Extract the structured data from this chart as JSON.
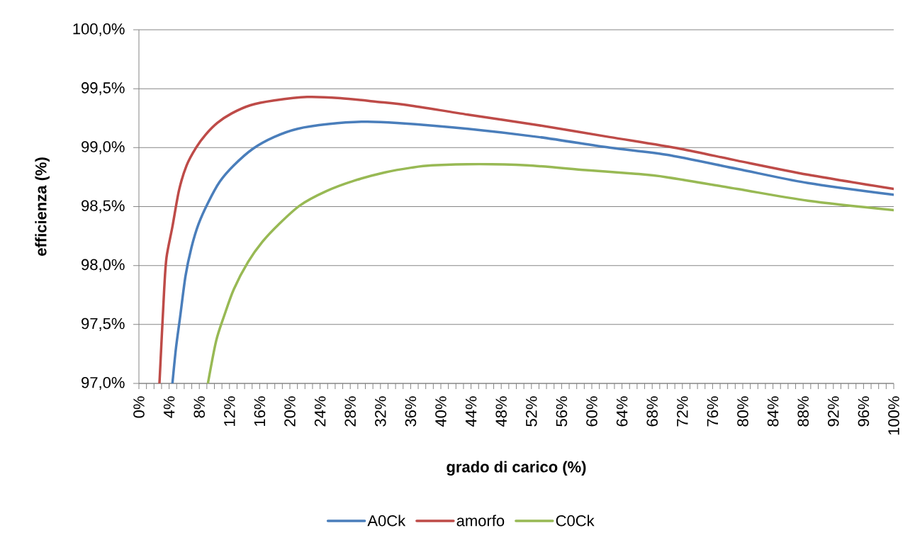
{
  "chart_data": {
    "type": "line",
    "xlabel": "grado di carico (%)",
    "ylabel": "efficienza (%)",
    "xlim": [
      0,
      100
    ],
    "ylim": [
      97,
      100
    ],
    "xticks": [
      {
        "value": 0,
        "label": "0%"
      },
      {
        "value": 1,
        "label": null
      },
      {
        "value": 2,
        "label": null
      },
      {
        "value": 3,
        "label": null
      },
      {
        "value": 4,
        "label": "4%"
      },
      {
        "value": 5,
        "label": null
      },
      {
        "value": 6,
        "label": null
      },
      {
        "value": 7,
        "label": null
      },
      {
        "value": 8,
        "label": "8%"
      },
      {
        "value": 9,
        "label": null
      },
      {
        "value": 10,
        "label": null
      },
      {
        "value": 11,
        "label": null
      },
      {
        "value": 12,
        "label": "12%"
      },
      {
        "value": 13,
        "label": null
      },
      {
        "value": 14,
        "label": null
      },
      {
        "value": 15,
        "label": null
      },
      {
        "value": 16,
        "label": "16%"
      },
      {
        "value": 17,
        "label": null
      },
      {
        "value": 18,
        "label": null
      },
      {
        "value": 19,
        "label": null
      },
      {
        "value": 20,
        "label": "20%"
      },
      {
        "value": 21,
        "label": null
      },
      {
        "value": 22,
        "label": null
      },
      {
        "value": 23,
        "label": null
      },
      {
        "value": 24,
        "label": "24%"
      },
      {
        "value": 25,
        "label": null
      },
      {
        "value": 26,
        "label": null
      },
      {
        "value": 27,
        "label": null
      },
      {
        "value": 28,
        "label": "28%"
      },
      {
        "value": 29,
        "label": null
      },
      {
        "value": 30,
        "label": null
      },
      {
        "value": 31,
        "label": null
      },
      {
        "value": 32,
        "label": "32%"
      },
      {
        "value": 33,
        "label": null
      },
      {
        "value": 34,
        "label": null
      },
      {
        "value": 35,
        "label": null
      },
      {
        "value": 36,
        "label": "36%"
      },
      {
        "value": 37,
        "label": null
      },
      {
        "value": 38,
        "label": null
      },
      {
        "value": 39,
        "label": null
      },
      {
        "value": 40,
        "label": "40%"
      },
      {
        "value": 41,
        "label": null
      },
      {
        "value": 42,
        "label": null
      },
      {
        "value": 43,
        "label": null
      },
      {
        "value": 44,
        "label": "44%"
      },
      {
        "value": 45,
        "label": null
      },
      {
        "value": 46,
        "label": null
      },
      {
        "value": 47,
        "label": null
      },
      {
        "value": 48,
        "label": "48%"
      },
      {
        "value": 49,
        "label": null
      },
      {
        "value": 50,
        "label": null
      },
      {
        "value": 51,
        "label": null
      },
      {
        "value": 52,
        "label": "52%"
      },
      {
        "value": 53,
        "label": null
      },
      {
        "value": 54,
        "label": null
      },
      {
        "value": 55,
        "label": null
      },
      {
        "value": 56,
        "label": "56%"
      },
      {
        "value": 57,
        "label": null
      },
      {
        "value": 58,
        "label": null
      },
      {
        "value": 59,
        "label": null
      },
      {
        "value": 60,
        "label": "60%"
      },
      {
        "value": 61,
        "label": null
      },
      {
        "value": 62,
        "label": null
      },
      {
        "value": 63,
        "label": null
      },
      {
        "value": 64,
        "label": "64%"
      },
      {
        "value": 65,
        "label": null
      },
      {
        "value": 66,
        "label": null
      },
      {
        "value": 67,
        "label": null
      },
      {
        "value": 68,
        "label": "68%"
      },
      {
        "value": 69,
        "label": null
      },
      {
        "value": 70,
        "label": null
      },
      {
        "value": 71,
        "label": null
      },
      {
        "value": 72,
        "label": "72%"
      },
      {
        "value": 73,
        "label": null
      },
      {
        "value": 74,
        "label": null
      },
      {
        "value": 75,
        "label": null
      },
      {
        "value": 76,
        "label": "76%"
      },
      {
        "value": 77,
        "label": null
      },
      {
        "value": 78,
        "label": null
      },
      {
        "value": 79,
        "label": null
      },
      {
        "value": 80,
        "label": "80%"
      },
      {
        "value": 81,
        "label": null
      },
      {
        "value": 82,
        "label": null
      },
      {
        "value": 83,
        "label": null
      },
      {
        "value": 84,
        "label": "84%"
      },
      {
        "value": 85,
        "label": null
      },
      {
        "value": 86,
        "label": null
      },
      {
        "value": 87,
        "label": null
      },
      {
        "value": 88,
        "label": "88%"
      },
      {
        "value": 89,
        "label": null
      },
      {
        "value": 90,
        "label": null
      },
      {
        "value": 91,
        "label": null
      },
      {
        "value": 92,
        "label": "92%"
      },
      {
        "value": 93,
        "label": null
      },
      {
        "value": 94,
        "label": null
      },
      {
        "value": 95,
        "label": null
      },
      {
        "value": 96,
        "label": "96%"
      },
      {
        "value": 97,
        "label": null
      },
      {
        "value": 98,
        "label": null
      },
      {
        "value": 99,
        "label": null
      },
      {
        "value": 100,
        "label": "100%"
      }
    ],
    "yticks": [
      {
        "value": 97,
        "label": "97,0%"
      },
      {
        "value": 97.5,
        "label": "97,5%"
      },
      {
        "value": 98,
        "label": "98,0%"
      },
      {
        "value": 98.5,
        "label": "98,5%"
      },
      {
        "value": 99,
        "label": "99,0%"
      },
      {
        "value": 99.5,
        "label": "99,5%"
      },
      {
        "value": 100,
        "label": "100,0%"
      }
    ],
    "grid": "y",
    "legend": "bottom",
    "marker": "none",
    "line_style": "solid",
    "series": [
      {
        "name": "A0Ck",
        "color": "#4a7ebb",
        "x": [
          4.44,
          4.91,
          5.45,
          6.17,
          6.95,
          7.89,
          9.14,
          10.7,
          12.58,
          15.09,
          17.9,
          21.03,
          25.1,
          29.8,
          34.18,
          43.57,
          52.96,
          62.35,
          69.86,
          79.25,
          88.64,
          100
        ],
        "values": [
          97.0,
          97.3,
          97.56,
          97.91,
          98.15,
          98.35,
          98.53,
          98.71,
          98.85,
          98.99,
          99.09,
          99.16,
          99.2,
          99.22,
          99.21,
          99.16,
          99.09,
          99.0,
          98.94,
          98.82,
          98.7,
          98.6
        ]
      },
      {
        "name": "amorfo",
        "color": "#be4b48",
        "x": [
          2.72,
          3.35,
          3.66,
          4.44,
          5.32,
          6.32,
          7.57,
          8.83,
          10.39,
          12.27,
          14.77,
          17.9,
          22.3,
          26.7,
          31.4,
          35.7,
          43.57,
          52.96,
          62.35,
          71.74,
          79.25,
          88.64,
          100
        ],
        "values": [
          97.0,
          97.8,
          98.07,
          98.33,
          98.64,
          98.85,
          99.0,
          99.11,
          99.21,
          99.29,
          99.36,
          99.4,
          99.43,
          99.42,
          99.39,
          99.36,
          99.28,
          99.19,
          99.09,
          98.99,
          98.89,
          98.77,
          98.65
        ]
      },
      {
        "name": "C0Ck",
        "color": "#98b954",
        "x": [
          9.14,
          10.23,
          11.33,
          12.58,
          14.46,
          16.34,
          18.53,
          21.34,
          24.79,
          28.54,
          32.6,
          36.06,
          38.87,
          45.1,
          51.4,
          59.2,
          65.5,
          69.86,
          79.25,
          88.64,
          100
        ],
        "values": [
          97.0,
          97.36,
          97.58,
          97.8,
          98.03,
          98.2,
          98.35,
          98.51,
          98.63,
          98.72,
          98.79,
          98.83,
          98.85,
          98.86,
          98.85,
          98.81,
          98.78,
          98.75,
          98.65,
          98.55,
          98.47
        ]
      }
    ]
  }
}
